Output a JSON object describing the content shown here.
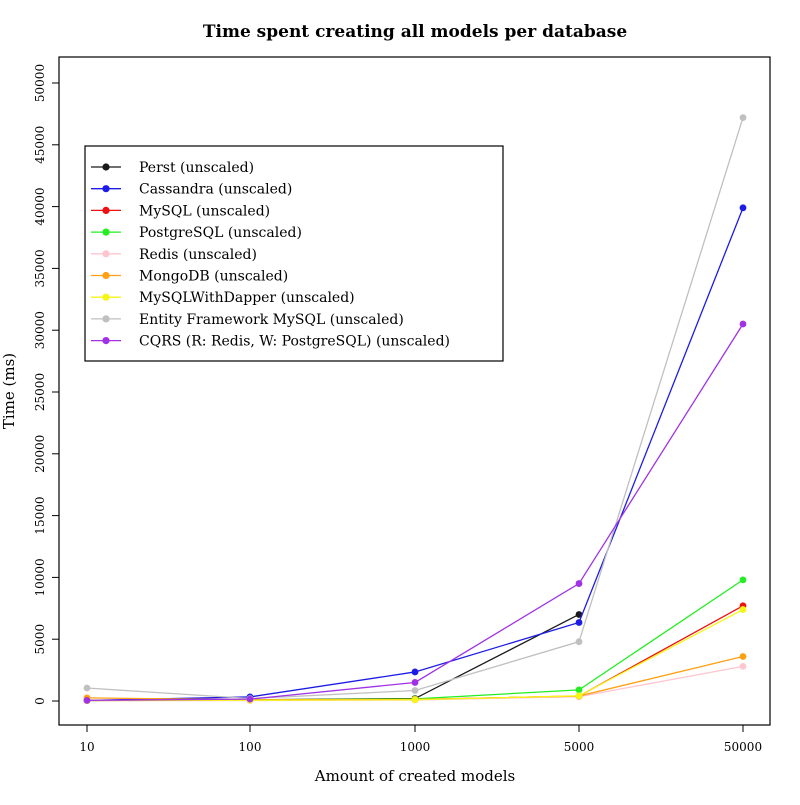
{
  "chart_data": {
    "type": "line",
    "title": "Time spent creating all models per database",
    "xlabel": "Amount of created models",
    "ylabel": "Time (ms)",
    "categories": [
      "10",
      "100",
      "1000",
      "5000",
      "50000"
    ],
    "ylim": [
      -2000,
      52000
    ],
    "yticks": [
      0,
      5000,
      10000,
      15000,
      20000,
      25000,
      30000,
      35000,
      40000,
      45000,
      50000
    ],
    "grid": false,
    "legend_position": "top-left",
    "series": [
      {
        "name": "Perst (unscaled)",
        "color": "#1a1a1a",
        "values": [
          30,
          100,
          200,
          7000,
          null
        ]
      },
      {
        "name": "Cassandra (unscaled)",
        "color": "#1c1ce6",
        "values": [
          50,
          330,
          2350,
          6350,
          39900
        ]
      },
      {
        "name": "MySQL (unscaled)",
        "color": "#ee1111",
        "values": [
          50,
          80,
          120,
          400,
          7700
        ]
      },
      {
        "name": "PostgreSQL (unscaled)",
        "color": "#22ee22",
        "values": [
          50,
          90,
          170,
          900,
          9800
        ]
      },
      {
        "name": "Redis (unscaled)",
        "color": "#ffc6cf",
        "values": [
          30,
          30,
          80,
          350,
          2800
        ]
      },
      {
        "name": "MongoDB (unscaled)",
        "color": "#ffa012",
        "values": [
          250,
          100,
          130,
          400,
          3600
        ]
      },
      {
        "name": "MySQLWithDapper (unscaled)",
        "color": "#f5f518",
        "values": [
          40,
          60,
          100,
          420,
          7400
        ]
      },
      {
        "name": "Entity Framework MySQL (unscaled)",
        "color": "#c0c0c0",
        "values": [
          1050,
          200,
          850,
          4800,
          47200
        ]
      },
      {
        "name": "CQRS (R: Redis, W: PostgreSQL) (unscaled)",
        "color": "#a032e6",
        "values": [
          50,
          150,
          1500,
          9500,
          30500
        ]
      }
    ]
  }
}
